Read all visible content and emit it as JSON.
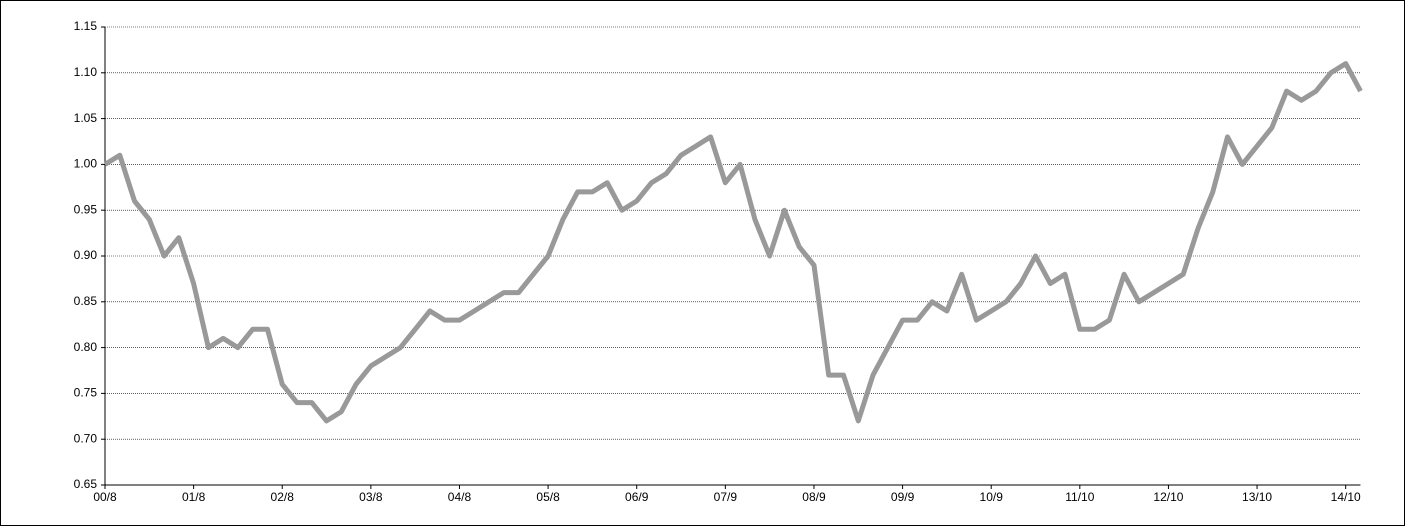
{
  "chart_data": {
    "type": "line",
    "categories": [
      "00/8",
      null,
      null,
      null,
      null,
      null,
      "01/8",
      null,
      null,
      null,
      null,
      null,
      "02/8",
      null,
      null,
      null,
      null,
      null,
      "03/8",
      null,
      null,
      null,
      null,
      null,
      "04/8",
      null,
      null,
      null,
      null,
      null,
      "05/8",
      null,
      null,
      null,
      null,
      null,
      "06/9",
      null,
      null,
      null,
      null,
      null,
      "07/9",
      null,
      null,
      null,
      null,
      null,
      "08/9",
      null,
      null,
      null,
      null,
      null,
      "09/9",
      null,
      null,
      null,
      null,
      null,
      "10/9",
      null,
      null,
      null,
      null,
      null,
      "11/10",
      null,
      null,
      null,
      null,
      null,
      "12/10",
      null,
      null,
      null,
      null,
      null,
      "13/10",
      null,
      null,
      null,
      null,
      null,
      "14/10",
      null
    ],
    "values": [
      1.0,
      1.01,
      0.96,
      0.94,
      0.9,
      0.92,
      0.87,
      0.8,
      0.81,
      0.8,
      0.82,
      0.82,
      0.76,
      0.74,
      0.74,
      0.72,
      0.73,
      0.76,
      0.78,
      0.79,
      0.8,
      0.82,
      0.84,
      0.83,
      0.83,
      0.84,
      0.85,
      0.86,
      0.86,
      0.88,
      0.9,
      0.94,
      0.97,
      0.97,
      0.98,
      0.95,
      0.96,
      0.98,
      0.99,
      1.01,
      1.02,
      1.03,
      0.98,
      1.0,
      0.94,
      0.9,
      0.95,
      0.91,
      0.89,
      0.77,
      0.77,
      0.72,
      0.77,
      0.8,
      0.83,
      0.83,
      0.85,
      0.84,
      0.88,
      0.83,
      0.84,
      0.85,
      0.87,
      0.9,
      0.87,
      0.88,
      0.82,
      0.82,
      0.83,
      0.88,
      0.85,
      0.86,
      0.87,
      0.88,
      0.93,
      0.97,
      1.03,
      1.0,
      1.02,
      1.04,
      1.08,
      1.07,
      1.08,
      1.1,
      1.11,
      1.08
    ],
    "color": "#999999",
    "ylim": [
      0.65,
      1.15
    ],
    "yticks": [
      0.65,
      {
        "value": 0.7,
        "label": "0.70"
      },
      0.75,
      {
        "value": 0.8,
        "label": "0.80"
      },
      0.85,
      {
        "value": 0.9,
        "label": "0.90"
      },
      0.95,
      {
        "value": 1.0,
        "label": "1.00"
      },
      1.05,
      {
        "value": 1.1,
        "label": "1.10"
      },
      1.15
    ],
    "grid": true
  }
}
